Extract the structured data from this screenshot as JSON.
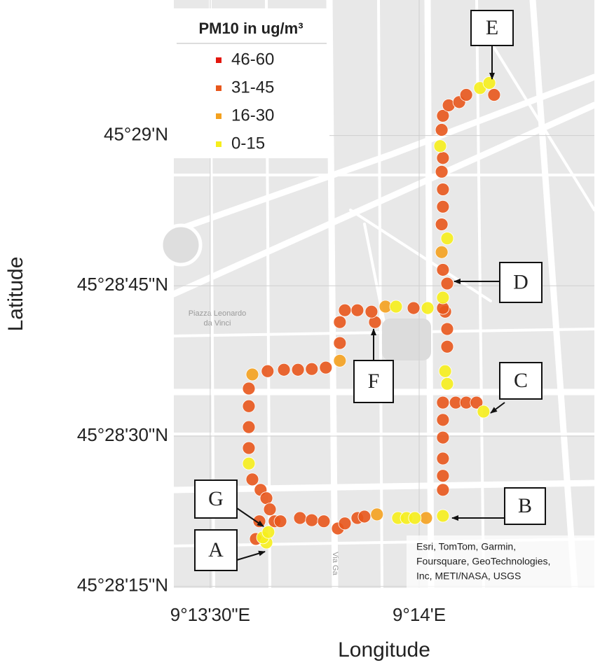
{
  "chart_data": {
    "type": "scatter",
    "x_label": "Longitude",
    "y_label": "Latitude",
    "legend_title": "PM10 in ug/m³",
    "legend": "upper left",
    "xlim": [
      9.22355,
      9.24032
    ],
    "ylim": [
      45.47079,
      45.48709
    ],
    "xticks": [
      {
        "value": 9.225,
        "label": "9°13'30\"E"
      },
      {
        "value": 9.233333,
        "label": "9°14'E"
      }
    ],
    "yticks": [
      {
        "value": 45.470833,
        "label": "45°28'15\"N"
      },
      {
        "value": 45.475,
        "label": "45°28'30\"N"
      },
      {
        "value": 45.479167,
        "label": "45°28'45\"N"
      },
      {
        "value": 45.483333,
        "label": "45°29'N"
      }
    ],
    "series": [
      {
        "name": "46-60",
        "color": "#e3170e",
        "x": [],
        "y": []
      },
      {
        "name": "31-45",
        "color": "#e8571c",
        "x": [
          9.22682,
          9.22696,
          9.22757,
          9.2278,
          9.22858,
          9.22905,
          9.22953,
          9.23009,
          9.23037,
          9.23087,
          9.23115,
          9.23428,
          9.23428,
          9.23428,
          9.23428,
          9.23428,
          9.23428,
          9.23445,
          9.23445,
          9.23437,
          9.23445,
          9.23428,
          9.23423,
          9.23428,
          9.23428,
          9.23423,
          9.23428,
          9.23423,
          9.23428,
          9.23451,
          9.23493,
          9.23521,
          9.23632,
          9.23479,
          9.23521,
          9.23562,
          9.23428,
          9.23311,
          9.23157,
          9.23143,
          9.23087,
          9.23037,
          9.23017,
          9.23017,
          9.22961,
          9.22905,
          9.2285,
          9.22794,
          9.22729,
          9.22654,
          9.22654,
          9.22654,
          9.22654,
          9.22668,
          9.22701,
          9.22724,
          9.22738
        ],
        "y": [
          45.47215,
          45.47264,
          45.47264,
          45.47264,
          45.47273,
          45.47267,
          45.47264,
          45.47244,
          45.47258,
          45.47273,
          45.47277,
          45.47351,
          45.4739,
          45.47438,
          45.47496,
          45.47545,
          45.47593,
          45.47748,
          45.47797,
          45.47845,
          45.47923,
          45.47961,
          45.48087,
          45.48136,
          45.48184,
          45.48233,
          45.48271,
          45.48349,
          45.48388,
          45.48417,
          45.48426,
          45.48446,
          45.48446,
          45.47593,
          45.47593,
          45.47593,
          45.47855,
          45.47855,
          45.47816,
          45.47845,
          45.47849,
          45.47849,
          45.47816,
          45.47758,
          45.4769,
          45.47686,
          45.47684,
          45.47684,
          45.4768,
          45.47632,
          45.47583,
          45.47525,
          45.47467,
          45.4738,
          45.47351,
          45.47328,
          45.47297
        ]
      },
      {
        "name": "16-30",
        "color": "#f4a11f",
        "x": [
          9.23165,
          9.23361,
          9.23017,
          9.22668,
          9.23423,
          9.23199
        ],
        "y": [
          45.47283,
          45.47273,
          45.47709,
          45.47671,
          45.4801,
          45.47859
        ]
      },
      {
        "name": "0-15",
        "color": "#f6ee1c",
        "x": [
          9.22724,
          9.2271,
          9.22732,
          9.23249,
          9.23283,
          9.23316,
          9.23428,
          9.23445,
          9.23437,
          9.23428,
          9.23445,
          9.23417,
          9.23576,
          9.23613,
          9.2359,
          9.23367,
          9.23241,
          9.22654
        ],
        "y": [
          45.47205,
          45.47219,
          45.47234,
          45.47273,
          45.47273,
          45.47273,
          45.47279,
          45.47645,
          45.4768,
          45.47884,
          45.48048,
          45.48304,
          45.48465,
          45.48479,
          45.47568,
          45.47855,
          45.47859,
          45.47424
        ]
      }
    ],
    "annotations": [
      "A",
      "B",
      "C",
      "D",
      "E",
      "F",
      "G"
    ],
    "map_labels": [
      "Piazza Leonardo",
      "da Vinci",
      "Via Ga"
    ],
    "attribution": [
      "Esri, TomTom, Garmin,",
      "Foursquare, GeoTechnologies,",
      "Inc, METI/NASA, USGS"
    ]
  }
}
